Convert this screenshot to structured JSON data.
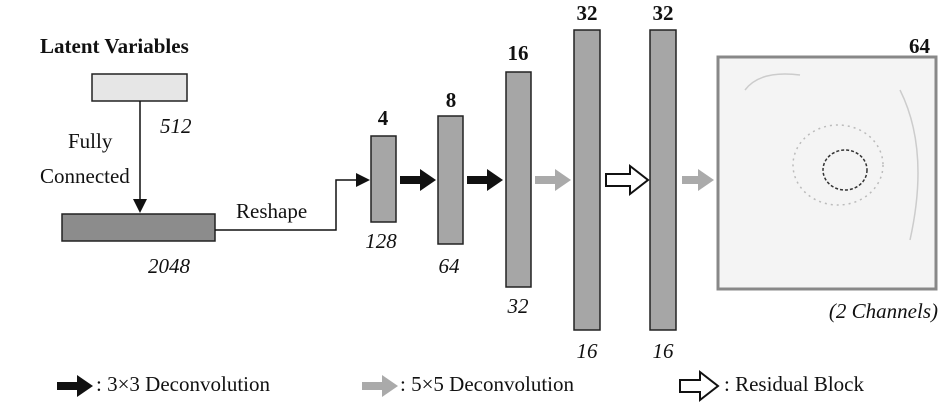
{
  "input": {
    "label": "Latent Variables",
    "size": 512
  },
  "fc": {
    "label_lines": [
      "Fully",
      "Connected"
    ],
    "size": 2048
  },
  "reshape": "Reshape",
  "layers": [
    {
      "channels": 4,
      "size": 128
    },
    {
      "channels": 8,
      "size": 64
    },
    {
      "channels": 16,
      "size": 32
    },
    {
      "channels": 32,
      "size": 16
    },
    {
      "channels": 32,
      "size": 16
    }
  ],
  "output": {
    "size": 64,
    "note": "(2 Channels)"
  },
  "legend": [
    ": 3×3 Deconvolution",
    ": 5×5 Deconvolution",
    ": Residual Block"
  ]
}
